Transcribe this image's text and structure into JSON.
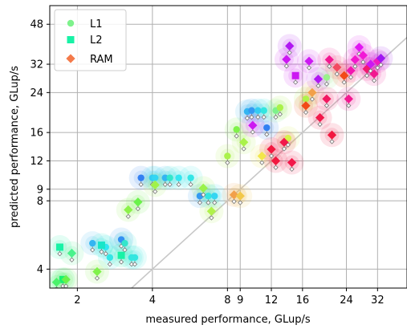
{
  "chart_data": {
    "type": "scatter",
    "xlabel": "measured performance, GLup/s",
    "ylabel": "predicted performance, GLup/s",
    "xscale": "log",
    "yscale": "log",
    "xlim": [
      1.55,
      42
    ],
    "ylim": [
      3.3,
      58
    ],
    "xticks": [
      2,
      4,
      8,
      9,
      12,
      16,
      24,
      32
    ],
    "yticks": [
      4,
      8,
      9,
      12,
      16,
      24,
      32,
      48
    ],
    "grid": true,
    "legend_position": "top-left",
    "reference_line": "y = x",
    "legend": [
      {
        "name": "L1",
        "marker": "circle",
        "color": "#7ef28c"
      },
      {
        "name": "L2",
        "marker": "square",
        "color": "#18f2a6"
      },
      {
        "name": "RAM",
        "marker": "diamond",
        "color": "#f47a4a"
      }
    ],
    "series": [
      {
        "name": "L1",
        "marker": "circle",
        "points": [
          {
            "x": 3.3,
            "y": 4.5,
            "color": "#33e6e0"
          },
          {
            "x": 3.4,
            "y": 4.5,
            "color": "#33e6e0"
          },
          {
            "x": 2.3,
            "y": 5.2,
            "color": "#33b5f2"
          },
          {
            "x": 2.6,
            "y": 5.0,
            "color": "#33e6f2"
          },
          {
            "x": 2.7,
            "y": 4.5,
            "color": "#33e6e6"
          },
          {
            "x": 3.0,
            "y": 5.4,
            "color": "#3390f2"
          },
          {
            "x": 3.1,
            "y": 5.2,
            "color": "#33e6cc"
          },
          {
            "x": 3.6,
            "y": 10.1,
            "color": "#3380f2"
          },
          {
            "x": 4.0,
            "y": 10.1,
            "color": "#33ccf2"
          },
          {
            "x": 4.1,
            "y": 10.1,
            "color": "#33d6f2"
          },
          {
            "x": 4.5,
            "y": 10.1,
            "color": "#33b5f2"
          },
          {
            "x": 4.7,
            "y": 10.1,
            "color": "#33e6cc"
          },
          {
            "x": 5.1,
            "y": 10.1,
            "color": "#33e6f0"
          },
          {
            "x": 5.7,
            "y": 10.1,
            "color": "#33e6e6"
          },
          {
            "x": 6.2,
            "y": 8.4,
            "color": "#3399f2"
          },
          {
            "x": 6.7,
            "y": 8.4,
            "color": "#33e6e0"
          },
          {
            "x": 7.1,
            "y": 8.4,
            "color": "#33d6f2"
          },
          {
            "x": 8.0,
            "y": 12.6,
            "color": "#aaf24a"
          },
          {
            "x": 8.7,
            "y": 16.5,
            "color": "#80f24a"
          },
          {
            "x": 9.6,
            "y": 19.8,
            "color": "#33b5f2"
          },
          {
            "x": 10.0,
            "y": 20.0,
            "color": "#3399f2"
          },
          {
            "x": 10.6,
            "y": 20.0,
            "color": "#33ccf2"
          },
          {
            "x": 11.2,
            "y": 20.0,
            "color": "#33e6e0"
          },
          {
            "x": 11.5,
            "y": 16.8,
            "color": "#3380f2"
          },
          {
            "x": 12.5,
            "y": 20.0,
            "color": "#7ef28c"
          },
          {
            "x": 13.0,
            "y": 20.6,
            "color": "#aaf24a"
          },
          {
            "x": 14.0,
            "y": 15.1,
            "color": "#d6f24a"
          },
          {
            "x": 16.5,
            "y": 22.5,
            "color": "#b0f24a"
          },
          {
            "x": 20.0,
            "y": 28.0,
            "color": "#9af28c"
          }
        ]
      },
      {
        "name": "L2",
        "marker": "square",
        "points": [
          {
            "x": 1.7,
            "y": 5.0,
            "color": "#18f2a6"
          },
          {
            "x": 1.75,
            "y": 3.6,
            "color": "#18f270"
          },
          {
            "x": 2.5,
            "y": 5.1,
            "color": "#18e6c8"
          },
          {
            "x": 3.0,
            "y": 4.6,
            "color": "#18f2a6"
          },
          {
            "x": 15.0,
            "y": 28.5,
            "color": "#cc18f2"
          }
        ]
      },
      {
        "name": "RAM",
        "marker": "diamond",
        "points": [
          {
            "x": 1.65,
            "y": 3.5,
            "color": "#4af26a"
          },
          {
            "x": 1.8,
            "y": 3.6,
            "color": "#6af24a"
          },
          {
            "x": 1.9,
            "y": 4.7,
            "color": "#4af28c"
          },
          {
            "x": 2.4,
            "y": 3.9,
            "color": "#80f24a"
          },
          {
            "x": 3.2,
            "y": 7.3,
            "color": "#8cf24a"
          },
          {
            "x": 3.5,
            "y": 7.9,
            "color": "#6af24a"
          },
          {
            "x": 4.1,
            "y": 9.4,
            "color": "#a0f24a"
          },
          {
            "x": 6.4,
            "y": 9.1,
            "color": "#9af24a"
          },
          {
            "x": 6.9,
            "y": 7.2,
            "color": "#b0f24a"
          },
          {
            "x": 8.5,
            "y": 8.5,
            "color": "#f2a04a"
          },
          {
            "x": 9.0,
            "y": 8.4,
            "color": "#f2c84a"
          },
          {
            "x": 9.3,
            "y": 14.5,
            "color": "#aaf24a"
          },
          {
            "x": 11.0,
            "y": 12.6,
            "color": "#f2e64a"
          },
          {
            "x": 12.0,
            "y": 13.5,
            "color": "#f21840"
          },
          {
            "x": 12.5,
            "y": 12.0,
            "color": "#f21840"
          },
          {
            "x": 13.5,
            "y": 14.5,
            "color": "#f2184a"
          },
          {
            "x": 14.5,
            "y": 11.8,
            "color": "#f2184a"
          },
          {
            "x": 10.1,
            "y": 17.2,
            "color": "#cc18f2"
          },
          {
            "x": 13.8,
            "y": 33.6,
            "color": "#cc18f2"
          },
          {
            "x": 14.2,
            "y": 38.5,
            "color": "#b018f2"
          },
          {
            "x": 16.5,
            "y": 21.0,
            "color": "#f24a18"
          },
          {
            "x": 17.5,
            "y": 24.0,
            "color": "#f2a04a"
          },
          {
            "x": 18.8,
            "y": 18.6,
            "color": "#f2184a"
          },
          {
            "x": 20.0,
            "y": 22.5,
            "color": "#f21860"
          },
          {
            "x": 21.0,
            "y": 15.6,
            "color": "#f21840"
          },
          {
            "x": 17.0,
            "y": 33.0,
            "color": "#cc18f2"
          },
          {
            "x": 18.5,
            "y": 27.5,
            "color": "#b018f2"
          },
          {
            "x": 20.5,
            "y": 33.5,
            "color": "#f21890"
          },
          {
            "x": 22.0,
            "y": 31.0,
            "color": "#f24a60"
          },
          {
            "x": 23.5,
            "y": 28.5,
            "color": "#f24a18"
          },
          {
            "x": 24.5,
            "y": 22.5,
            "color": "#f21890"
          },
          {
            "x": 25.0,
            "y": 30.0,
            "color": "#f218b0"
          },
          {
            "x": 26.0,
            "y": 33.5,
            "color": "#f218cc"
          },
          {
            "x": 27.0,
            "y": 38.0,
            "color": "#e018f2"
          },
          {
            "x": 28.0,
            "y": 35.0,
            "color": "#f218d6"
          },
          {
            "x": 29.0,
            "y": 30.5,
            "color": "#f21870"
          },
          {
            "x": 30.0,
            "y": 32.0,
            "color": "#cc18f2"
          },
          {
            "x": 31.0,
            "y": 29.0,
            "color": "#f21890"
          },
          {
            "x": 32.0,
            "y": 33.0,
            "color": "#f218c0"
          },
          {
            "x": 33.0,
            "y": 34.0,
            "color": "#a018f2"
          }
        ]
      }
    ]
  }
}
